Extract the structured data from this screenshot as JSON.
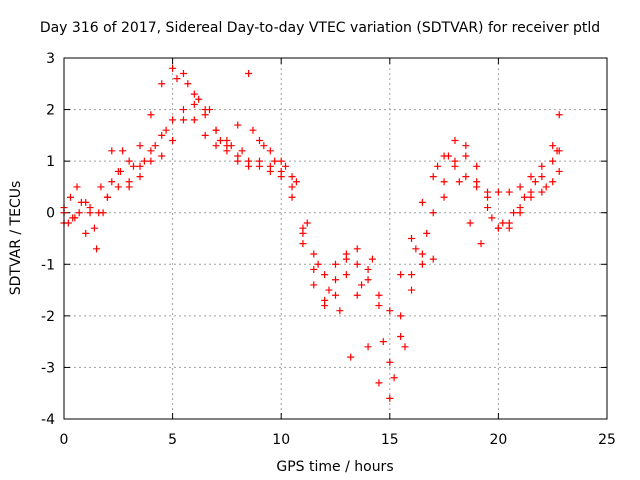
{
  "chart_data": {
    "type": "scatter",
    "title": "Day 316 of 2017, Sidereal Day-to-day VTEC variation (SDTVAR) for receiver ptld",
    "xlabel": "GPS time / hours",
    "ylabel": "SDTVAR / TECUs",
    "xlim": [
      0,
      25
    ],
    "ylim": [
      -4,
      3
    ],
    "xticks": [
      0,
      5,
      10,
      15,
      20,
      25
    ],
    "yticks": [
      -4,
      -3,
      -2,
      -1,
      0,
      1,
      2,
      3
    ],
    "grid": true,
    "marker": "+",
    "colors": {
      "points": "#ff0000",
      "grid": "#a0a0a0"
    },
    "series": [
      {
        "x": [
          0,
          0.3,
          0.6,
          1.0,
          1.4,
          1.8,
          2.2,
          2.6,
          3.0,
          3.5,
          4.0,
          4.5,
          5.0,
          5.5,
          6.0,
          6.5,
          7.0,
          7.5,
          8.0,
          8.5,
          9.0,
          9.5,
          10.0,
          10.5,
          11.0,
          11.5,
          12.0,
          12.5,
          13.0,
          13.5,
          14.0,
          14.5,
          15.0,
          15.5,
          16.0,
          16.5,
          17.0,
          17.5,
          18.0,
          18.5,
          19.0,
          19.5,
          20.0,
          20.5,
          21.0,
          21.5,
          22.0,
          22.5,
          22.8
        ],
        "y": [
          0.0,
          0.3,
          0.5,
          0.2,
          -0.3,
          0.0,
          0.6,
          0.8,
          1.0,
          1.3,
          1.9,
          2.5,
          2.8,
          2.7,
          2.3,
          2.0,
          1.6,
          1.4,
          1.7,
          2.7,
          1.4,
          1.2,
          1.0,
          0.7,
          -0.6,
          -1.4,
          -1.8,
          -1.6,
          -1.2,
          -1.6,
          -2.6,
          -3.3,
          -3.6,
          -2.4,
          -1.5,
          -0.8,
          0.0,
          0.6,
          0.9,
          0.7,
          0.5,
          0.4,
          0.4,
          0.4,
          0.5,
          0.7,
          0.9,
          1.3,
          1.9
        ]
      },
      {
        "x": [
          0,
          0.4,
          0.8,
          1.2,
          1.6,
          2.0,
          2.5,
          3.0,
          3.5,
          4.0,
          4.5,
          5.0,
          5.5,
          6.0,
          6.5,
          7.0,
          7.5,
          8.0,
          8.5,
          9.0,
          9.5,
          10.0,
          10.5,
          11.0,
          11.5,
          12.0,
          12.5,
          13.0,
          13.5,
          14.0,
          14.5,
          15.0,
          15.5,
          16.0,
          16.5,
          17.0,
          17.5,
          18.0,
          18.5,
          19.0,
          19.5,
          20.0,
          20.5,
          21.0,
          21.5,
          22.0,
          22.5,
          22.8
        ],
        "y": [
          0.1,
          -0.1,
          0.2,
          0.0,
          0.0,
          0.3,
          0.5,
          0.5,
          0.7,
          1.0,
          1.1,
          1.4,
          1.8,
          2.1,
          1.9,
          1.6,
          1.3,
          1.1,
          1.0,
          1.0,
          0.9,
          0.7,
          0.3,
          -0.3,
          -0.8,
          -1.2,
          -1.0,
          -0.8,
          -1.0,
          -1.3,
          -1.6,
          -1.9,
          -1.2,
          -0.5,
          0.2,
          0.7,
          1.1,
          1.4,
          1.1,
          0.6,
          0.1,
          -0.3,
          -0.2,
          0.1,
          0.4,
          0.7,
          1.0,
          1.2
        ]
      },
      {
        "x": [
          0,
          0.5,
          1.0,
          1.5,
          2.0,
          2.5,
          3.0,
          3.5,
          4.0,
          4.5,
          5.0,
          5.5,
          6.0,
          6.5,
          7.0,
          7.5,
          8.0,
          8.5,
          9.0,
          9.5,
          10.0,
          10.5,
          11.0,
          11.5,
          12.0,
          12.5,
          13.0,
          13.5,
          14.0,
          14.5,
          15.0,
          15.5,
          16.0,
          16.5,
          17.0,
          17.5,
          18.0,
          18.5,
          19.0,
          19.5,
          20.0,
          20.5,
          21.0,
          21.5,
          22.0,
          22.5,
          22.8
        ],
        "y": [
          -0.2,
          -0.1,
          -0.4,
          -0.7,
          0.3,
          0.8,
          0.6,
          0.9,
          1.2,
          1.5,
          1.8,
          2.0,
          1.8,
          1.5,
          1.3,
          1.2,
          1.0,
          0.9,
          0.9,
          0.8,
          0.8,
          0.5,
          -0.4,
          -1.1,
          -1.7,
          -1.3,
          -0.9,
          -0.7,
          -1.1,
          -1.8,
          -2.9,
          -2.0,
          -1.2,
          -1.0,
          -0.9,
          0.3,
          1.0,
          1.3,
          0.9,
          0.3,
          -0.3,
          -0.3,
          0.0,
          0.3,
          0.4,
          0.6,
          0.8
        ]
      },
      {
        "x": [
          0.2,
          0.7,
          1.2,
          1.7,
          2.2,
          2.7,
          3.2,
          3.7,
          4.2,
          4.7,
          5.2,
          5.7,
          6.2,
          6.7,
          7.2,
          7.7,
          8.2,
          8.7,
          9.2,
          9.7,
          10.2,
          10.7,
          11.2,
          11.7,
          12.2,
          12.7,
          13.2,
          13.7,
          14.2,
          14.7,
          15.2,
          15.7,
          16.2,
          16.7,
          17.2,
          17.7,
          18.2,
          18.7,
          19.2,
          19.7,
          20.2,
          20.7,
          21.2,
          21.7,
          22.2,
          22.7
        ],
        "y": [
          -0.2,
          0.0,
          0.1,
          0.5,
          1.2,
          1.2,
          0.9,
          1.0,
          1.3,
          1.6,
          2.6,
          2.5,
          2.2,
          2.0,
          1.4,
          1.3,
          1.2,
          1.6,
          1.3,
          1.0,
          0.9,
          0.6,
          -0.2,
          -1.0,
          -1.5,
          -1.9,
          -2.8,
          -1.4,
          -0.9,
          -2.5,
          -3.2,
          -2.6,
          -0.7,
          -0.4,
          0.9,
          1.1,
          0.6,
          -0.2,
          -0.6,
          -0.1,
          -0.2,
          0.0,
          0.3,
          0.6,
          0.5,
          1.2
        ]
      }
    ]
  }
}
